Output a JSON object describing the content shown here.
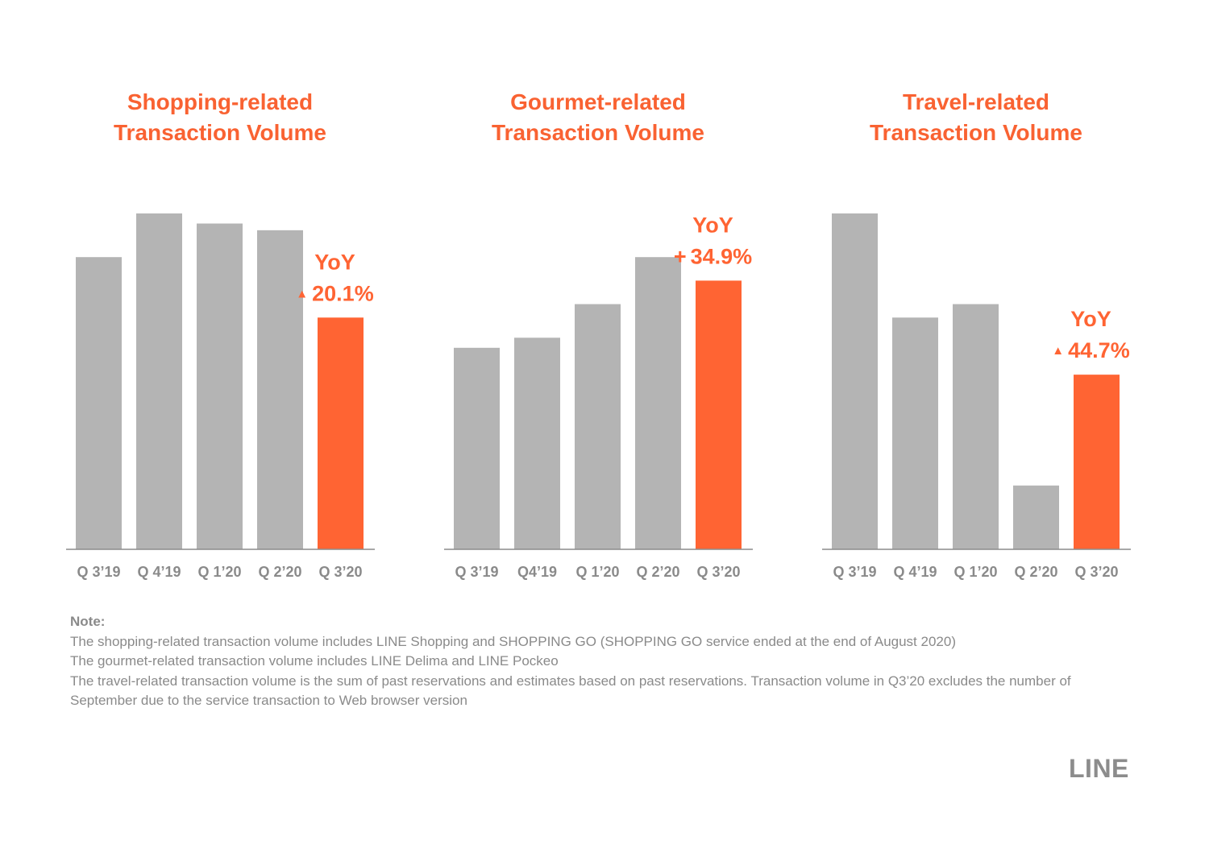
{
  "colors": {
    "accent": "#ff6433",
    "bar": "#b4b4b4",
    "axis": "#8c8c8c",
    "text": "#8a8a8a"
  },
  "chart_data": [
    {
      "type": "bar",
      "title": "Shopping-related Transaction Volume",
      "title_lines": [
        "Shopping-related",
        "Transaction Volume"
      ],
      "categories": [
        "Q 3’19",
        "Q 4’19",
        "Q 1’20",
        "Q 2’20",
        "Q 3’20"
      ],
      "values": [
        87,
        100,
        97,
        95,
        69
      ],
      "highlight_index": 4,
      "ylim": [
        0,
        100
      ],
      "annotation": {
        "label": "YoY",
        "arrow": "▲",
        "value": "20.1%"
      }
    },
    {
      "type": "bar",
      "title": "Gourmet-related Transaction Volume",
      "title_lines": [
        "Gourmet-related",
        "Transaction Volume"
      ],
      "categories": [
        "Q 3’19",
        "Q4’19",
        "Q 1’20",
        "Q 2’20",
        "Q 3’20"
      ],
      "values": [
        60,
        63,
        73,
        87,
        80
      ],
      "highlight_index": 4,
      "ylim": [
        0,
        100
      ],
      "annotation": {
        "label": "YoY",
        "arrow": "+",
        "value": "34.9%"
      }
    },
    {
      "type": "bar",
      "title": "Travel-related Transaction Volume",
      "title_lines": [
        "Travel-related",
        "Transaction Volume"
      ],
      "categories": [
        "Q 3’19",
        "Q 4’19",
        "Q 1’20",
        "Q 2’20",
        "Q 3’20"
      ],
      "values": [
        100,
        69,
        73,
        19,
        52
      ],
      "highlight_index": 4,
      "ylim": [
        0,
        100
      ],
      "annotation": {
        "label": "YoY",
        "arrow": "▲",
        "value": "44.7%"
      }
    }
  ],
  "notes": {
    "title": "Note:",
    "lines": [
      "The shopping-related transaction volume includes LINE Shopping and SHOPPING GO (SHOPPING GO service ended at the end of August 2020)",
      "The gourmet-related transaction volume includes LINE Delima and LINE Pockeo",
      "The travel-related transaction volume is the sum of past reservations and estimates based on past reservations. Transaction volume in Q3’20 excludes the number of September due to the service transaction to Web browser version"
    ]
  },
  "logo": {
    "text": "LINE"
  }
}
